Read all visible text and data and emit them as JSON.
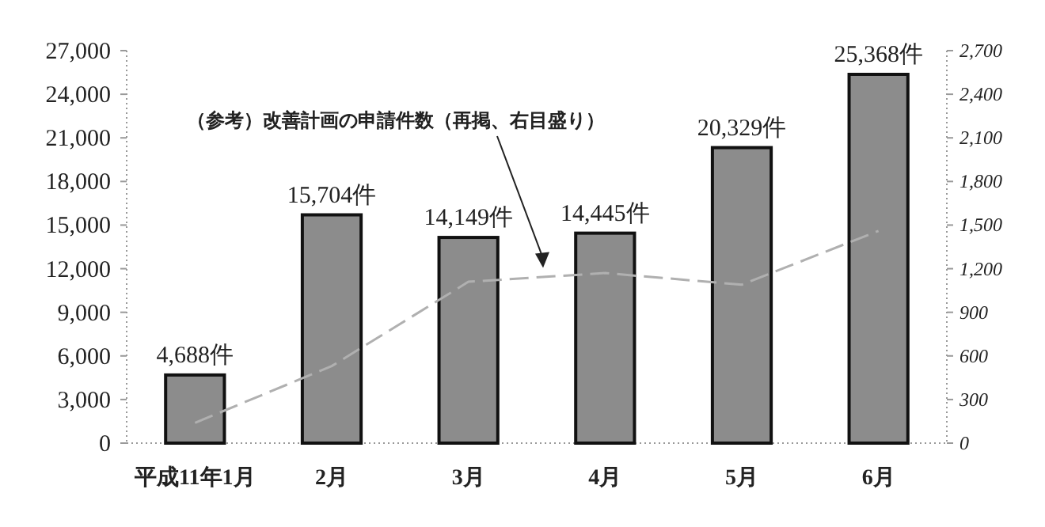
{
  "chart_data": {
    "type": "bar",
    "categories": [
      "平成11年1月",
      "2月",
      "3月",
      "4月",
      "5月",
      "6月"
    ],
    "series": [
      {
        "color": "#8c8c8c",
        "values": [
          4688,
          15704,
          14149,
          14445,
          20329,
          25368
        ],
        "value_labels": [
          "4,688件",
          "15,704件",
          "14,149件",
          "14,445件",
          "20,329件",
          "25,368件"
        ]
      },
      {
        "type": "line",
        "axis": "y2",
        "color": "#b0b0b0",
        "line_style": "dashed",
        "values": [
          140,
          530,
          1110,
          1170,
          1090,
          1460
        ]
      }
    ],
    "ylim": [
      0,
      27000
    ],
    "yticks": [
      0,
      {
        "value": 3000,
        "label": "3,000"
      },
      {
        "value": 6000,
        "label": "6,000"
      },
      {
        "value": 9000,
        "label": "9,000"
      },
      {
        "value": 12000,
        "label": "12,000"
      },
      {
        "value": 15000,
        "label": "15,000"
      },
      {
        "value": 18000,
        "label": "18,000"
      },
      {
        "value": 21000,
        "label": "21,000"
      },
      {
        "value": 24000,
        "label": "24,000"
      },
      {
        "value": 27000,
        "label": "27,000"
      }
    ],
    "y2lim": [
      0,
      2700
    ],
    "y2ticks": [
      0,
      300,
      600,
      900,
      {
        "value": 1200,
        "label": "1,200"
      },
      {
        "value": 1500,
        "label": "1,500"
      },
      {
        "value": 1800,
        "label": "1,800"
      },
      {
        "value": 2100,
        "label": "2,100"
      },
      {
        "value": 2400,
        "label": "2,400"
      },
      {
        "value": 2700,
        "label": "2,700"
      }
    ],
    "annotations": [
      "（参考）改善計画の申請件数（再掲、右目盛り）"
    ]
  }
}
